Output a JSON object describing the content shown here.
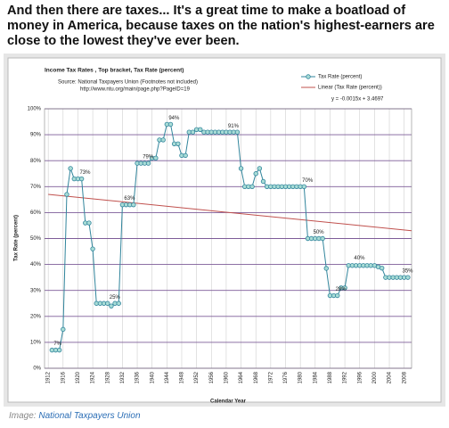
{
  "header": "And then there are taxes... It's a great time to make a boatload of money in America, because taxes on the nation's highest-earners are close to the lowest they've ever been.",
  "caption": {
    "prefix": "Image:",
    "link": "National Taxpayers Union"
  },
  "chart_data": {
    "type": "line",
    "title": "Income Tax Rates , Top bracket, Tax Rate (percent)",
    "source": [
      "Source: National Taxpayers Union (Footnotes not included)",
      "http://www.ntu.org/main/page.php?PageID=19"
    ],
    "x_label": "Calendar Year",
    "y_label": "Tax Rate (percent)",
    "x": [
      1913,
      1914,
      1915,
      1916,
      1917,
      1918,
      1919,
      1920,
      1921,
      1922,
      1923,
      1924,
      1925,
      1926,
      1927,
      1928,
      1929,
      1930,
      1931,
      1932,
      1933,
      1934,
      1935,
      1936,
      1937,
      1938,
      1939,
      1940,
      1941,
      1942,
      1943,
      1944,
      1945,
      1946,
      1947,
      1948,
      1949,
      1950,
      1951,
      1952,
      1953,
      1954,
      1955,
      1956,
      1957,
      1958,
      1959,
      1960,
      1961,
      1962,
      1963,
      1964,
      1965,
      1966,
      1967,
      1968,
      1969,
      1970,
      1971,
      1972,
      1973,
      1974,
      1975,
      1976,
      1977,
      1978,
      1979,
      1980,
      1981,
      1982,
      1983,
      1984,
      1985,
      1986,
      1987,
      1988,
      1989,
      1990,
      1991,
      1992,
      1993,
      1994,
      1995,
      1996,
      1997,
      1998,
      1999,
      2000,
      2001,
      2002,
      2003,
      2004,
      2005,
      2006,
      2007,
      2008,
      2009
    ],
    "series": [
      {
        "name": "Tax Rate (percent)",
        "color": "#31859c",
        "values": [
          7,
          7,
          7,
          15,
          67,
          77,
          73,
          73,
          73,
          56,
          56,
          46,
          25,
          25,
          25,
          25,
          24,
          25,
          25,
          63,
          63,
          63,
          63,
          79,
          79,
          79,
          79,
          81,
          81,
          88,
          88,
          94,
          94,
          86.5,
          86.5,
          82,
          82,
          91,
          91,
          92,
          92,
          91,
          91,
          91,
          91,
          91,
          91,
          91,
          91,
          91,
          91,
          77,
          70,
          70,
          70,
          75,
          77,
          72,
          70,
          70,
          70,
          70,
          70,
          70,
          70,
          70,
          70,
          70,
          70,
          50,
          50,
          50,
          50,
          50,
          38.5,
          28,
          28,
          28,
          31,
          31,
          39.6,
          39.6,
          39.6,
          39.6,
          39.6,
          39.6,
          39.6,
          39.6,
          39.1,
          38.6,
          35,
          35,
          35,
          35,
          35,
          35,
          35
        ]
      }
    ],
    "trend": {
      "name": "Linear (Tax Rate (percent))",
      "color": "#c0504d",
      "x": [
        1912,
        2010
      ],
      "values": [
        67,
        53
      ]
    },
    "equation": "y = -0.0015x + 3.4697",
    "annotations": [
      {
        "text": "7%",
        "x": 1913,
        "y": 7
      },
      {
        "text": "73%",
        "x": 1920,
        "y": 73
      },
      {
        "text": "25%",
        "x": 1928,
        "y": 25
      },
      {
        "text": "63%",
        "x": 1932,
        "y": 63
      },
      {
        "text": "79%",
        "x": 1937,
        "y": 79
      },
      {
        "text": "94%",
        "x": 1944,
        "y": 94
      },
      {
        "text": "91%",
        "x": 1960,
        "y": 91
      },
      {
        "text": "70%",
        "x": 1980,
        "y": 70
      },
      {
        "text": "50%",
        "x": 1983,
        "y": 50
      },
      {
        "text": "28%",
        "x": 1989,
        "y": 28
      },
      {
        "text": "40%",
        "x": 1994,
        "y": 40
      },
      {
        "text": "35%",
        "x": 2007,
        "y": 35
      }
    ],
    "xlim": [
      1911,
      2010
    ],
    "xticks": [
      1912,
      1916,
      1920,
      1924,
      1928,
      1932,
      1936,
      1940,
      1944,
      1948,
      1952,
      1956,
      1960,
      1964,
      1968,
      1972,
      1976,
      1980,
      1984,
      1988,
      1992,
      1996,
      2000,
      2004,
      2008
    ],
    "ylim": [
      0,
      100
    ],
    "yticks": [
      {
        "value": 0,
        "label": "0%"
      },
      {
        "value": 10,
        "label": "10%"
      },
      {
        "value": 20,
        "label": "20%"
      },
      {
        "value": 30,
        "label": "30%"
      },
      {
        "value": 40,
        "label": "40%"
      },
      {
        "value": 50,
        "label": "50%"
      },
      {
        "value": 60,
        "label": "60%"
      },
      {
        "value": 70,
        "label": "70%"
      },
      {
        "value": 80,
        "label": "80%"
      },
      {
        "value": 90,
        "label": "90%"
      },
      {
        "value": 100,
        "label": "100%"
      }
    ],
    "grid": true
  }
}
